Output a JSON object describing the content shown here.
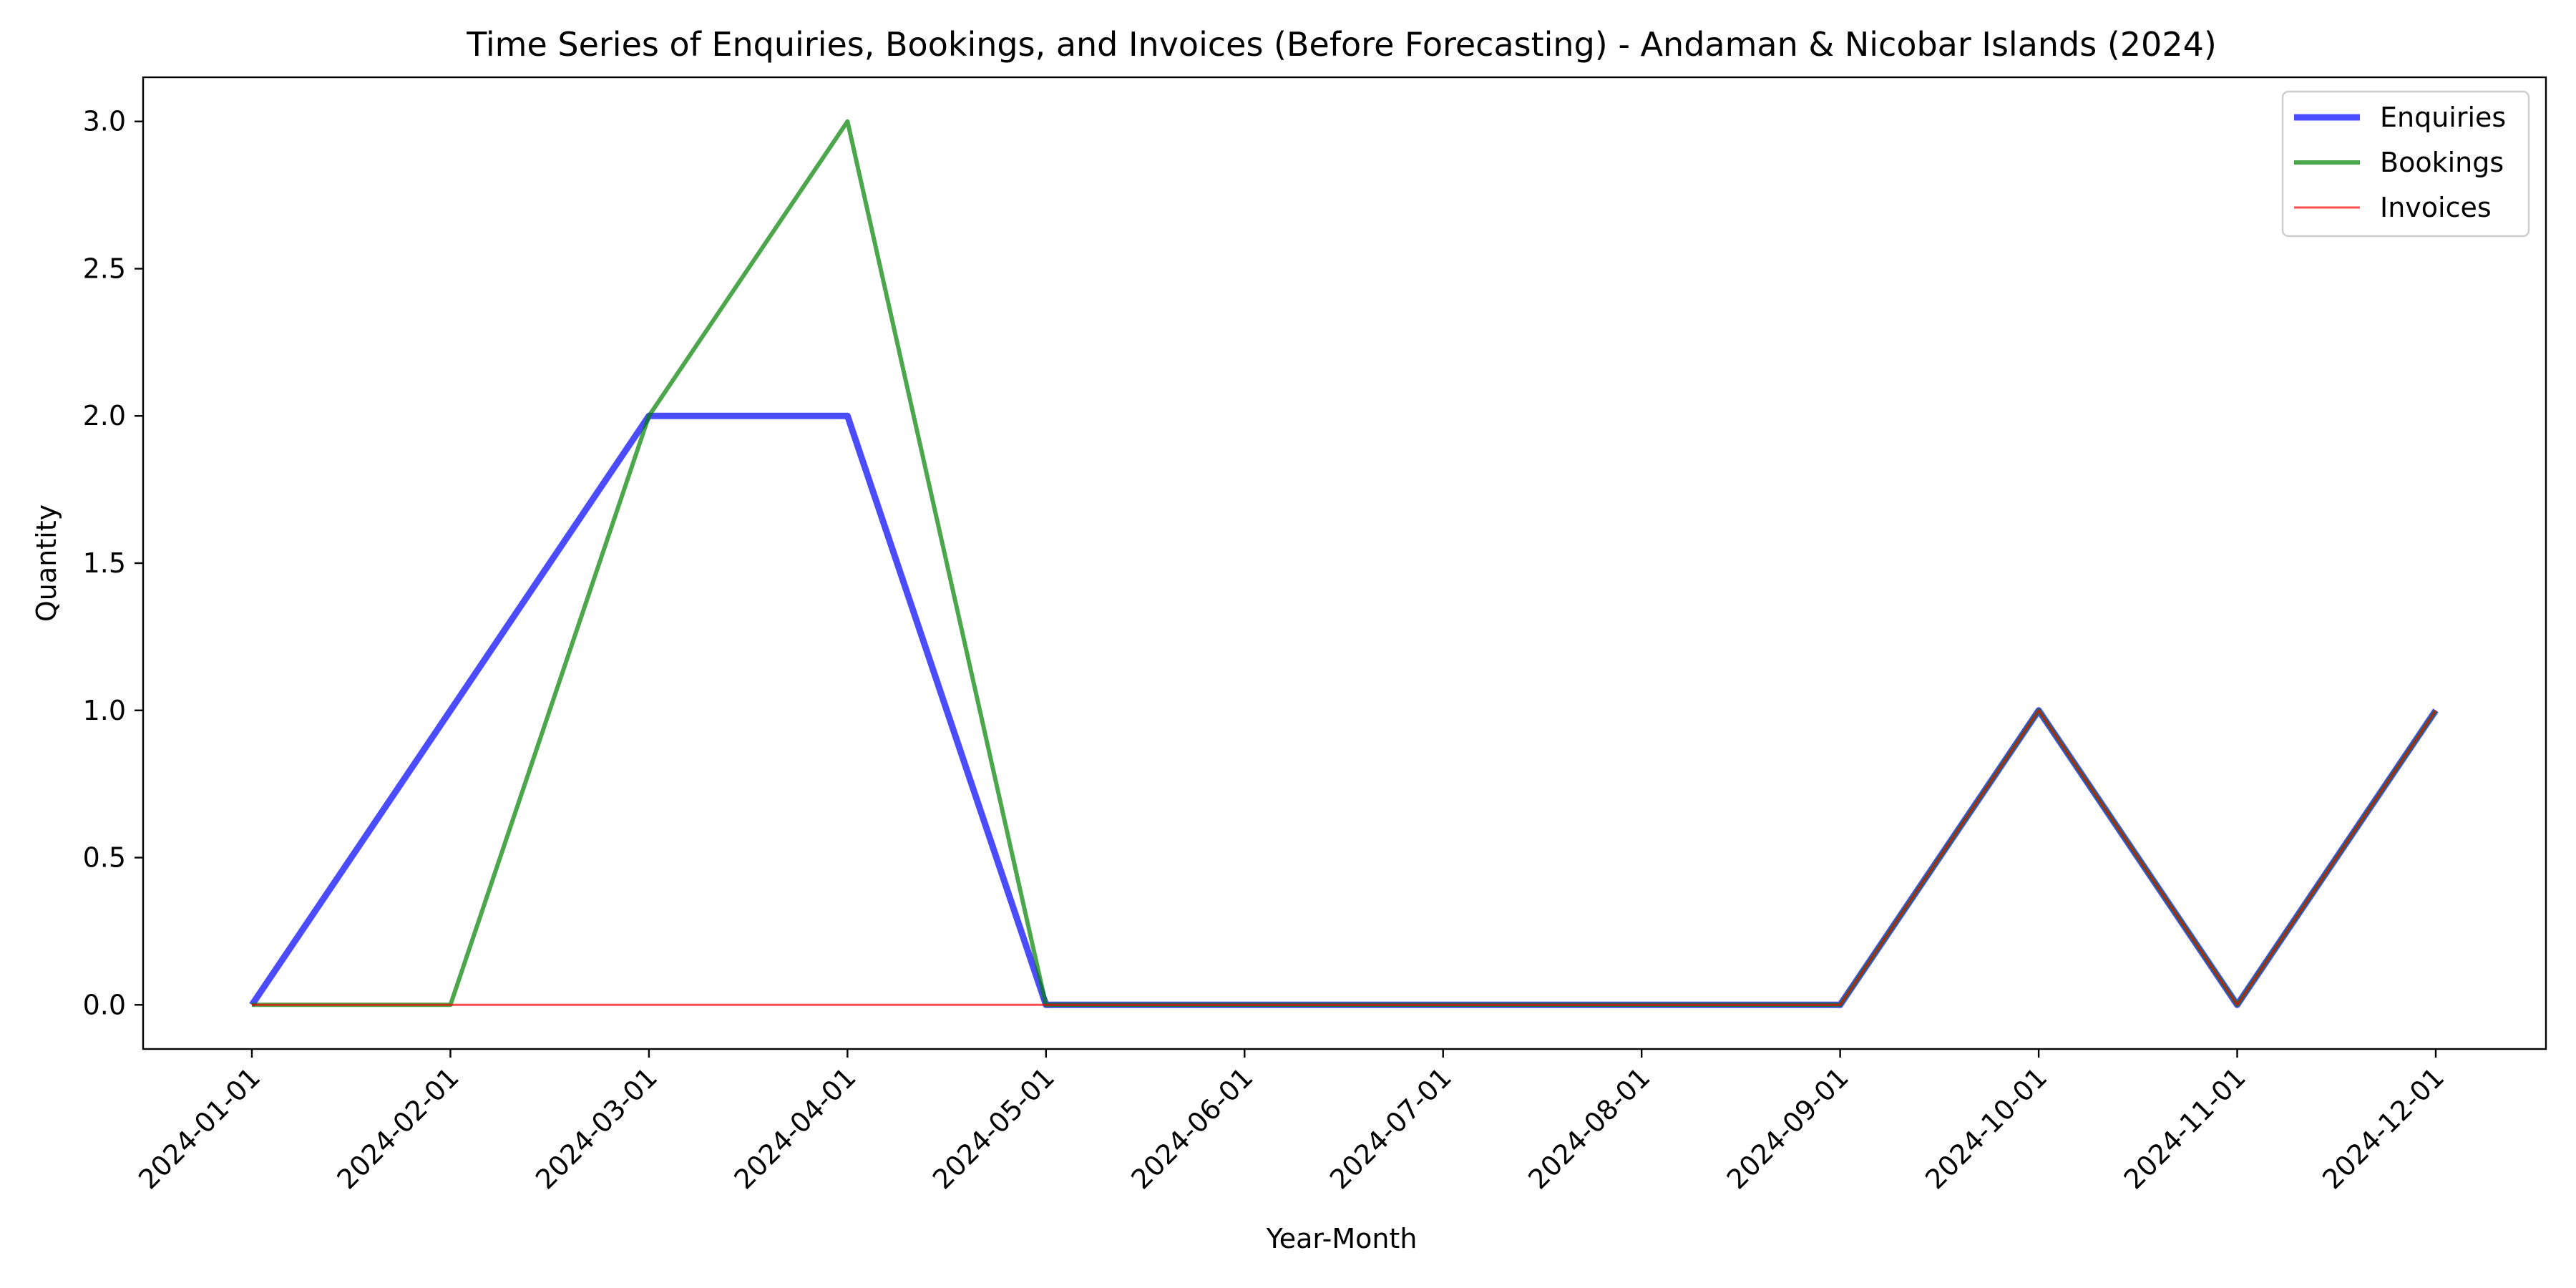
{
  "chart_data": {
    "type": "line",
    "title": "Time Series of Enquiries, Bookings, and Invoices (Before Forecasting) - Andaman & Nicobar Islands (2024)",
    "xlabel": "Year-Month",
    "ylabel": "Quantity",
    "categories": [
      "2024-01-01",
      "2024-02-01",
      "2024-03-01",
      "2024-04-01",
      "2024-05-01",
      "2024-06-01",
      "2024-07-01",
      "2024-08-01",
      "2024-09-01",
      "2024-10-01",
      "2024-11-01",
      "2024-12-01"
    ],
    "ylim": [
      -0.15,
      3.15
    ],
    "yticks": [
      "0.0",
      "0.5",
      "1.0",
      "1.5",
      "2.0",
      "2.5",
      "3.0"
    ],
    "ytick_values": [
      0,
      0.5,
      1,
      1.5,
      2,
      2.5,
      3
    ],
    "grid": false,
    "legend_position": "top-right",
    "series": [
      {
        "name": "Enquiries",
        "color": "#0000ff",
        "opacity": 0.7,
        "values": [
          0,
          1,
          2,
          2,
          0,
          0,
          0,
          0,
          0,
          1,
          0,
          1
        ]
      },
      {
        "name": "Bookings",
        "color": "#008000",
        "opacity": 0.7,
        "values": [
          0,
          0,
          2,
          3,
          0,
          0,
          0,
          0,
          0,
          1,
          0,
          1
        ]
      },
      {
        "name": "Invoices",
        "color": "#ff0000",
        "opacity": 0.7,
        "values": [
          0,
          0,
          0,
          0,
          0,
          0,
          0,
          0,
          0,
          1,
          0,
          1
        ]
      }
    ]
  }
}
